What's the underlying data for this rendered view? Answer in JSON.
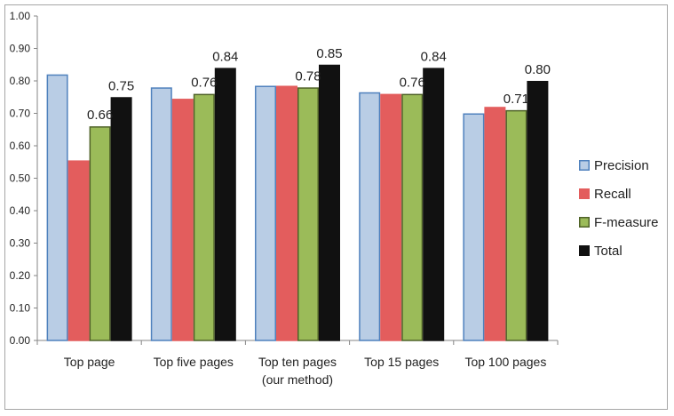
{
  "chart_data": {
    "type": "bar",
    "categories": [
      "Top page",
      "Top five pages",
      "Top ten pages\n(our method)",
      "Top 15 pages",
      "Top 100 pages"
    ],
    "series": [
      {
        "name": "Precision",
        "values": [
          0.82,
          0.78,
          0.785,
          0.765,
          0.7
        ],
        "color": "#b9cde5",
        "edge": "#4f81bd"
      },
      {
        "name": "Recall",
        "values": [
          0.555,
          0.745,
          0.785,
          0.76,
          0.72
        ],
        "color": "#e35d5d",
        "edge": "#e35d5d"
      },
      {
        "name": "F-measure",
        "values": [
          0.66,
          0.76,
          0.78,
          0.76,
          0.71
        ],
        "color": "#9bbb59",
        "edge": "#4f6228"
      },
      {
        "name": "Total",
        "values": [
          0.75,
          0.84,
          0.85,
          0.84,
          0.8
        ],
        "color": "#111111",
        "edge": "#111111"
      }
    ],
    "data_labels": {
      "F-measure": [
        "0.66",
        "0.76",
        "0.78",
        "0.76",
        "0.71"
      ],
      "Total": [
        "0.75",
        "0.84",
        "0.85",
        "0.84",
        "0.80"
      ]
    },
    "y_ticks": [
      "0.00",
      "0.10",
      "0.20",
      "0.30",
      "0.40",
      "0.50",
      "0.60",
      "0.70",
      "0.80",
      "0.90",
      "1.00"
    ],
    "ylim": [
      0,
      1.0
    ],
    "title": "",
    "xlabel": "",
    "ylabel": "",
    "grid": false,
    "legend": "right"
  }
}
